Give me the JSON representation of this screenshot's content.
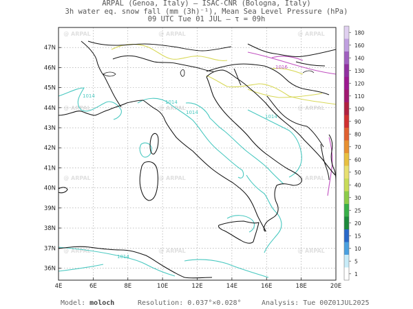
{
  "title": {
    "line1": "ARPAL (Genoa, Italy)  –  ISAC-CNR (Bologna, Italy)",
    "line2": "3h water eq. snow fall (mm (3h)⁻¹), Mean Sea Level Pressure (hPa)",
    "line3": "09 UTC Tue 01 JUL  –  τ = 09h"
  },
  "map": {
    "lon_ticks": [
      "4E",
      "6E",
      "8E",
      "10E",
      "12E",
      "14E",
      "16E",
      "18E",
      "20E"
    ],
    "lat_ticks": [
      "36N",
      "37N",
      "38N",
      "39N",
      "40N",
      "41N",
      "42N",
      "43N",
      "44N",
      "45N",
      "46N",
      "47N"
    ],
    "extent": {
      "lon": [
        4,
        20
      ],
      "lat": [
        35.4,
        48.0
      ]
    },
    "watermark": "ARPAL",
    "isobar_labels": [
      "1014",
      "1014",
      "1014",
      "1014",
      "1016",
      "1014"
    ],
    "isobar_colors": {
      "turquoise": "#48c8c0",
      "yellow": "#d8d858",
      "magenta": "#c050c0"
    }
  },
  "colorbar": {
    "labels": [
      "1",
      "5",
      "10",
      "15",
      "20",
      "25",
      "30",
      "40",
      "50",
      "60",
      "70",
      "80",
      "90",
      "100",
      "110",
      "120",
      "130",
      "140",
      "160",
      "180"
    ],
    "colors": [
      "#ffffff",
      "#c8ecf8",
      "#4aa0e0",
      "#2868c8",
      "#1c8a3c",
      "#38b048",
      "#8ccc48",
      "#c8dc58",
      "#e8e070",
      "#e8c040",
      "#e89030",
      "#e06030",
      "#d03030",
      "#b02040",
      "#a01870",
      "#9c1890",
      "#9030a0",
      "#a060c0",
      "#c0a0e0",
      "#e0d0f0"
    ]
  },
  "footer": {
    "model_label": "Model:",
    "model_value": "moloch",
    "resolution_label": "Resolution:",
    "resolution_value": "0.037°×0.028°",
    "analysis_label": "Analysis:",
    "analysis_value": "Tue 00Z01JUL2025"
  }
}
